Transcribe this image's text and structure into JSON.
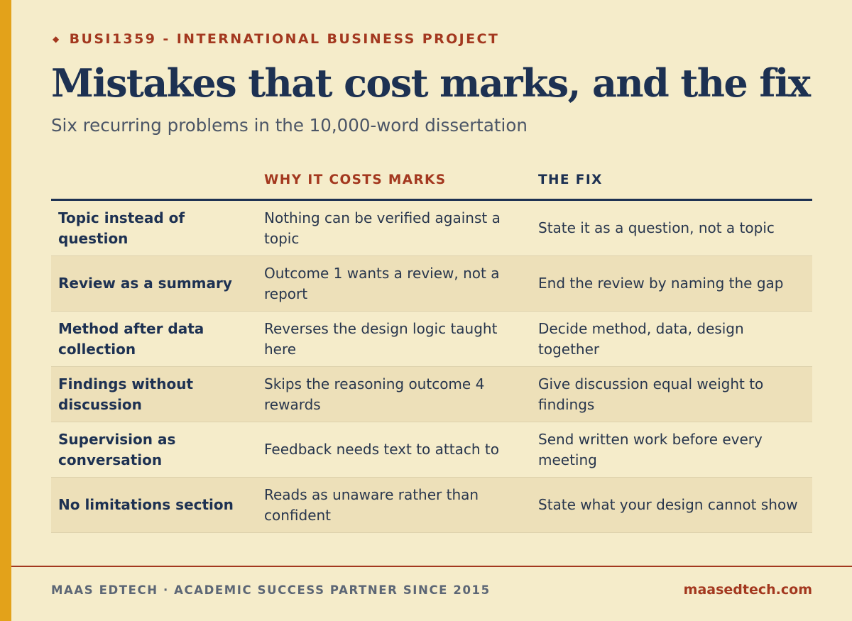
{
  "eyebrow": {
    "icon": "diamond-icon",
    "text": "BUSI1359 - INTERNATIONAL BUSINESS PROJECT"
  },
  "title": "Mistakes that cost marks, and the fix",
  "subtitle": "Six recurring problems in the 10,000-word dissertation",
  "table": {
    "headers": {
      "mistake": "",
      "why": "WHY IT COSTS MARKS",
      "fix": "THE FIX"
    },
    "rows": [
      {
        "mistake": "Topic instead of question",
        "why": "Nothing can be verified against a topic",
        "fix": "State it as a question, not a topic"
      },
      {
        "mistake": "Review as a summary",
        "why": "Outcome 1 wants a review, not a report",
        "fix": "End the review by naming the gap"
      },
      {
        "mistake": "Method after data collection",
        "why": "Reverses the design logic taught here",
        "fix": "Decide method, data, design together"
      },
      {
        "mistake": "Findings without discussion",
        "why": "Skips the reasoning outcome 4 rewards",
        "fix": "Give discussion equal weight to findings"
      },
      {
        "mistake": "Supervision as conversation",
        "why": "Feedback needs text to attach to",
        "fix": "Send written work before every meeting"
      },
      {
        "mistake": "No limitations section",
        "why": "Reads as unaware rather than confident",
        "fix": "State what your design cannot show"
      }
    ]
  },
  "footer": {
    "left": "MAAS EDTECH · ACADEMIC SUCCESS PARTNER SINCE 2015",
    "right": "maasedtech.com"
  },
  "colors": {
    "accent": "#e3a21a",
    "brand_red": "#a3381f",
    "navy": "#1d3152",
    "background": "#f5ecca",
    "row_shade": "#ede0b9"
  }
}
